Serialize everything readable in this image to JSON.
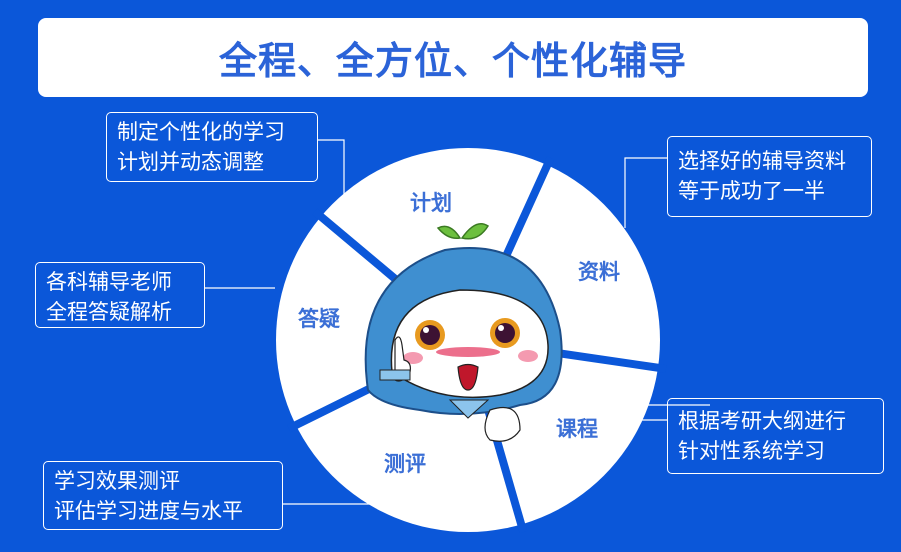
{
  "title": "全程、全方位、个性化辅导",
  "segments": [
    "计划",
    "资料",
    "课程",
    "测评",
    "答疑"
  ],
  "callouts": {
    "plan": [
      "制定个性化的学习",
      "计划并动态调整"
    ],
    "materials": [
      "选择好的辅导资料",
      "等于成功了一半"
    ],
    "qa": [
      "各科辅导老师",
      "全程答疑解析"
    ],
    "course": [
      "根据考研大纲进行",
      "针对性系统学习"
    ],
    "assessment": [
      "学习效果测评",
      "评估学习进度与水平"
    ]
  },
  "colors": {
    "background": "#0b57d9",
    "accent": "#2b63d8",
    "mascot": "#3f8fd0"
  }
}
